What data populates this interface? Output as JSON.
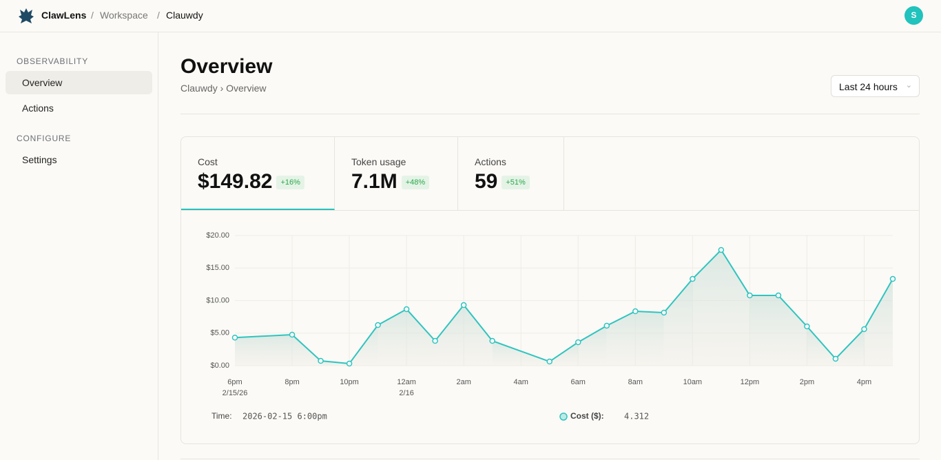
{
  "header": {
    "brand": "ClawLens",
    "separator": "/",
    "breadcrumb": [
      "Workspace",
      "Clauwdy"
    ],
    "avatar": "S"
  },
  "sidebar": {
    "sections": [
      {
        "title": "OBSERVABILITY",
        "items": [
          "Overview",
          "Actions"
        ]
      },
      {
        "title": "CONFIGURE",
        "items": [
          "Settings"
        ]
      }
    ]
  },
  "page": {
    "title": "Overview",
    "breadcrumb": "Clauwdy › Overview",
    "range_select": "Last 24 hours"
  },
  "stats": [
    {
      "label": "Cost",
      "value": "$149.82",
      "change": "+16%"
    },
    {
      "label": "Token usage",
      "value": "7.1M",
      "change": "+48%"
    },
    {
      "label": "Actions",
      "value": "59",
      "change": "+51%"
    }
  ],
  "chart_data": {
    "type": "line",
    "categories": [
      "6pm",
      null,
      "8pm",
      null,
      "10pm",
      null,
      "12am",
      null,
      "2am",
      null,
      "4am",
      null,
      "6am",
      null,
      "8am",
      null,
      "10am",
      null,
      "12pm",
      null,
      "2pm",
      null,
      "4pm",
      null
    ],
    "x_sublabels": [
      "2/15/26",
      null,
      null,
      null,
      null,
      null,
      "2/16",
      null,
      null,
      null,
      null,
      null,
      null,
      null,
      null,
      null,
      null,
      null,
      null,
      null,
      null,
      null,
      null,
      null
    ],
    "series": [
      {
        "name": "Cost ($):",
        "color": "#2ec4c0",
        "values": [
          4.312,
          null,
          4.76,
          0.74,
          0.32,
          6.24,
          8.68,
          3.81,
          9.31,
          3.81,
          null,
          0.63,
          3.6,
          6.14,
          8.36,
          8.15,
          13.33,
          17.78,
          10.79,
          10.79,
          6.03,
          1.06,
          5.61,
          13.33
        ]
      }
    ],
    "ylim": [
      0,
      20
    ],
    "yticks": [
      {
        "value": 0,
        "label": "$0.00"
      },
      {
        "value": 5,
        "label": "$5.00"
      },
      {
        "value": 10,
        "label": "$10.00"
      },
      {
        "value": 15,
        "label": "$15.00"
      },
      {
        "value": 20,
        "label": "$20.00"
      }
    ],
    "grid": true,
    "tooltip": {
      "time_label": "Time:",
      "time": "2026-02-15 6:00pm"
    }
  }
}
